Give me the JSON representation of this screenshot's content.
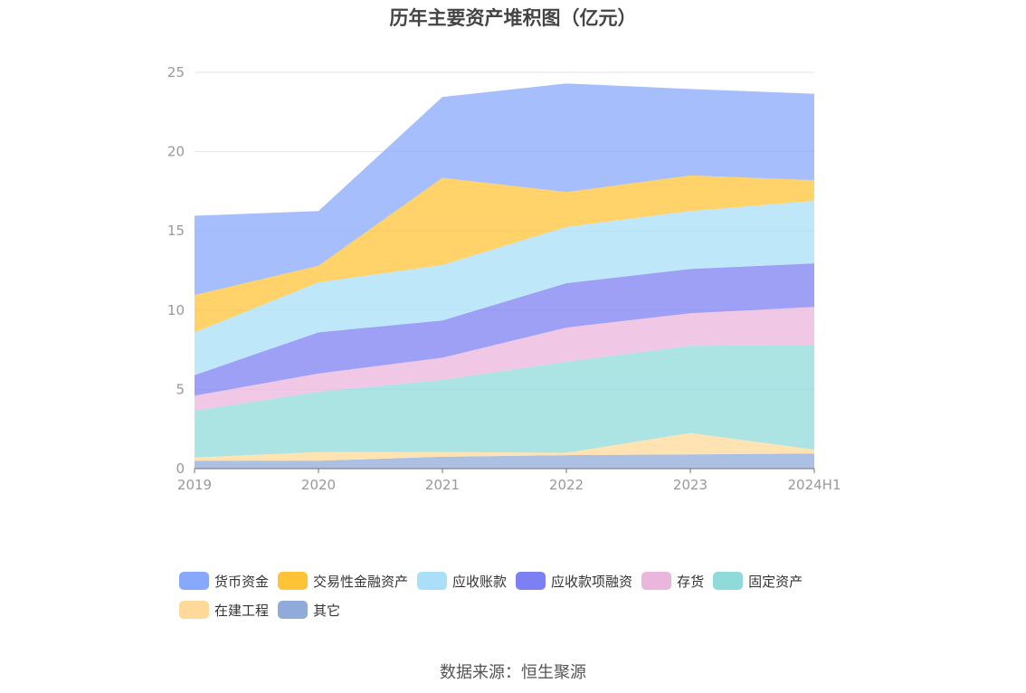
{
  "chart_data": {
    "type": "area",
    "stacked": true,
    "title": "历年主要资产堆积图（亿元）",
    "xlabel": "",
    "ylabel": "",
    "categories": [
      "2019",
      "2020",
      "2021",
      "2022",
      "2023",
      "2024H1"
    ],
    "ylim": [
      0,
      25
    ],
    "yticks": [
      0,
      5,
      10,
      15,
      20,
      25
    ],
    "grid": true,
    "legend_position": "bottom",
    "series": [
      {
        "name": "其它",
        "color": "#8fabd9",
        "values": [
          0.5,
          0.5,
          0.75,
          0.85,
          0.9,
          0.95
        ]
      },
      {
        "name": "在建工程",
        "color": "#ffd99a",
        "values": [
          0.2,
          0.55,
          0.3,
          0.15,
          1.35,
          0.25
        ]
      },
      {
        "name": "固定资产",
        "color": "#8fdbda",
        "values": [
          2.95,
          3.8,
          4.55,
          5.75,
          5.5,
          6.6
        ]
      },
      {
        "name": "存货",
        "color": "#ebb6dc",
        "values": [
          0.95,
          1.15,
          1.4,
          2.15,
          2.05,
          2.4
        ]
      },
      {
        "name": "应收款项融资",
        "color": "#7d80f2",
        "values": [
          1.3,
          2.6,
          2.35,
          2.8,
          2.8,
          2.75
        ]
      },
      {
        "name": "应收账款",
        "color": "#a9dff8",
        "values": [
          2.7,
          3.15,
          3.5,
          3.55,
          3.65,
          3.95
        ]
      },
      {
        "name": "交易性金融资产",
        "color": "#ffc338",
        "values": [
          2.35,
          1.05,
          5.5,
          2.2,
          2.25,
          1.3
        ]
      },
      {
        "name": "货币资金",
        "color": "#88a8fb",
        "values": [
          5.0,
          3.45,
          5.1,
          6.85,
          5.45,
          5.45
        ]
      }
    ]
  },
  "legend": [
    {
      "label": "货币资金",
      "color": "#88a8fb"
    },
    {
      "label": "交易性金融资产",
      "color": "#ffc338"
    },
    {
      "label": "应收账款",
      "color": "#a9dff8"
    },
    {
      "label": "应收款项融资",
      "color": "#7d80f2"
    },
    {
      "label": "存货",
      "color": "#ebb6dc"
    },
    {
      "label": "固定资产",
      "color": "#8fdbda"
    },
    {
      "label": "在建工程",
      "color": "#ffd99a"
    },
    {
      "label": "其它",
      "color": "#8fabd9"
    }
  ],
  "source": "数据来源：恒生聚源"
}
